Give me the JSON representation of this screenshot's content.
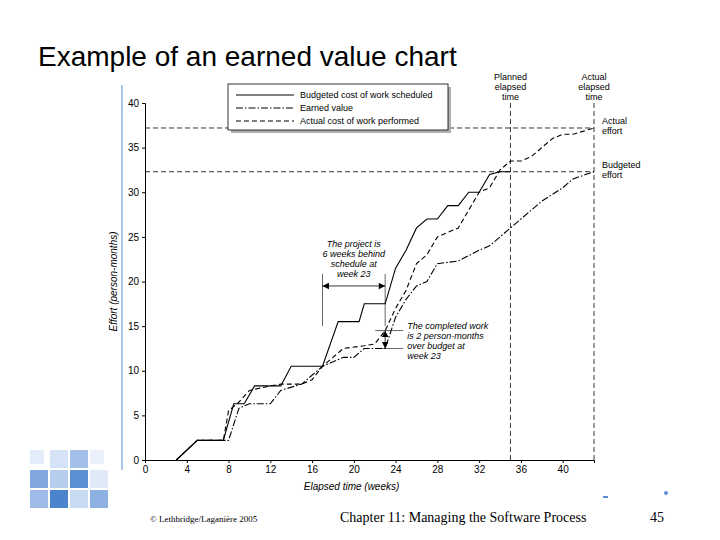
{
  "title": "Example of an earned value chart",
  "footer": {
    "copyright": "© Lethbridge/Laganière 2005",
    "chapter": "Chapter 11: Managing the Software Process",
    "page": "45"
  },
  "chart_data": {
    "type": "line",
    "x_label": "Elapsed time (weeks)",
    "y_label": "Effort (person-months)",
    "xlim": [
      0,
      43
    ],
    "xticks": [
      0,
      4,
      8,
      12,
      16,
      20,
      24,
      28,
      32,
      36,
      40
    ],
    "ylim": [
      0,
      40
    ],
    "yticks": [
      0,
      5,
      10,
      15,
      20,
      25,
      30,
      35,
      40
    ],
    "grid": false,
    "legend": "top-left",
    "series": [
      {
        "name": "Budgeted cost of work scheduled",
        "color": "#000000",
        "line_style": "solid",
        "x": [
          3,
          5,
          7.5,
          8.5,
          9.5,
          10.5,
          13,
          14,
          17,
          18.5,
          20.5,
          21,
          23,
          24,
          25,
          26,
          27,
          28,
          29,
          30,
          31,
          32,
          33,
          34,
          35
        ],
        "values": [
          0,
          2.2,
          2.2,
          6.3,
          6.3,
          8.3,
          8.3,
          10.5,
          10.5,
          15.5,
          15.5,
          17.5,
          17.5,
          21.5,
          23.5,
          26,
          27,
          27,
          28.5,
          28.5,
          30,
          30,
          32,
          32.3,
          32.3
        ]
      },
      {
        "name": "Earned value",
        "color": "#000000",
        "line_style": "dashdot",
        "x": [
          3,
          5,
          8,
          9,
          10,
          12,
          13,
          15,
          17,
          19,
          20,
          21,
          23,
          24,
          25,
          26,
          27,
          28,
          30,
          32,
          33,
          34,
          35,
          36,
          38,
          40,
          41,
          43
        ],
        "values": [
          0,
          2.2,
          2.2,
          5.8,
          6.3,
          6.3,
          7.8,
          8.5,
          10.5,
          11.5,
          11.5,
          12.5,
          12.5,
          16,
          18,
          19.5,
          20,
          22,
          22.3,
          23.5,
          24,
          25,
          26,
          27,
          29,
          30.5,
          31.5,
          32.3
        ]
      },
      {
        "name": "Actual cost of work performed",
        "color": "#000000",
        "line_style": "dashed",
        "x": [
          3,
          5,
          7.5,
          8,
          9,
          10,
          12,
          13,
          15,
          16,
          17,
          18,
          19,
          21,
          22,
          23,
          24,
          25,
          26,
          27,
          28,
          29,
          30,
          31,
          32,
          33,
          34,
          35,
          36,
          37,
          38,
          39,
          40,
          41,
          43
        ],
        "values": [
          0,
          2.2,
          2.2,
          5.5,
          6.5,
          7.8,
          8.3,
          8.5,
          8.5,
          9,
          10.5,
          11.5,
          12.5,
          12.8,
          13,
          14.5,
          17,
          19,
          22,
          23,
          25,
          25.5,
          26,
          28,
          30,
          30.5,
          32.5,
          33.5,
          33.5,
          34,
          35,
          36,
          36.5,
          36.5,
          37.2
        ]
      }
    ],
    "reference_lines": [
      {
        "axis": "x",
        "value": 35,
        "label": [
          "Planned",
          "elapsed",
          "time"
        ]
      },
      {
        "axis": "x",
        "value": 43,
        "label": [
          "Actual",
          "elapsed",
          "time"
        ]
      },
      {
        "axis": "y",
        "value": 37.2,
        "label": [
          "Actual",
          "effort"
        ]
      },
      {
        "axis": "y",
        "value": 32.3,
        "label": [
          "Budgeted",
          "effort"
        ]
      }
    ],
    "annotations": [
      {
        "text": [
          "The project is",
          "6 weeks behind",
          "schedule at",
          "week 23"
        ],
        "x": [
          17,
          23
        ],
        "y": 19.5
      },
      {
        "text": [
          "The completed work",
          "is 2 person-months",
          "over budget at",
          "week 23"
        ],
        "x": 23,
        "y": [
          12.5,
          14.5
        ]
      }
    ]
  }
}
